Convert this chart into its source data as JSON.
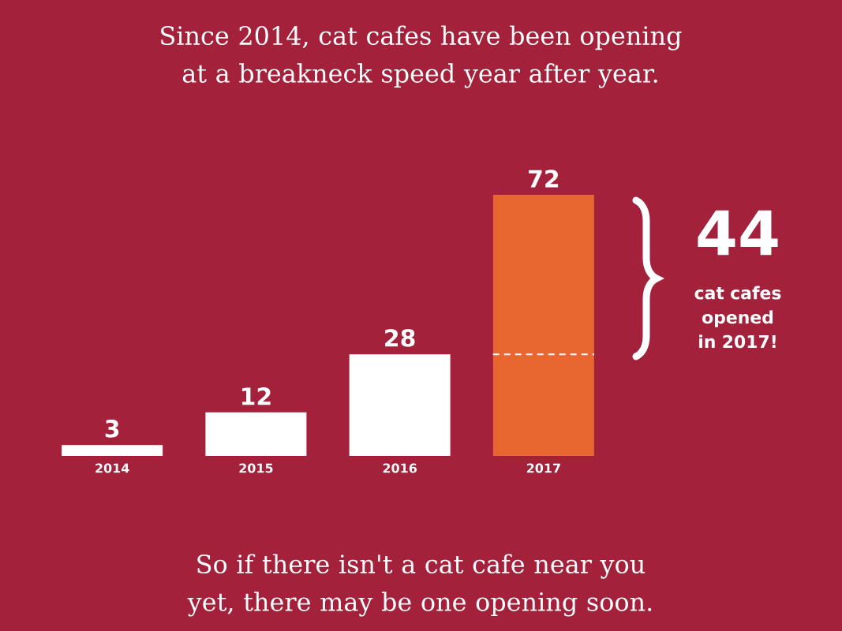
{
  "chart_data": {
    "type": "bar",
    "title": "Since 2014, cat cafes have been opening at a breakneck speed year after year.",
    "categories": [
      "2014",
      "2015",
      "2016",
      "2017"
    ],
    "values": [
      3,
      12,
      28,
      72
    ],
    "colors": [
      "#ffffff",
      "#ffffff",
      "#ffffff",
      "#e8662f"
    ],
    "data_labels": true,
    "ref_lines": [
      {
        "axis": "y",
        "value": 28,
        "color": "#ffffff",
        "line_style": "dashed"
      }
    ],
    "annotations": [
      "44",
      "cat cafes opened in 2017!",
      "So if there isn't a cat cafe near you yet, there may be one opening soon."
    ]
  }
}
